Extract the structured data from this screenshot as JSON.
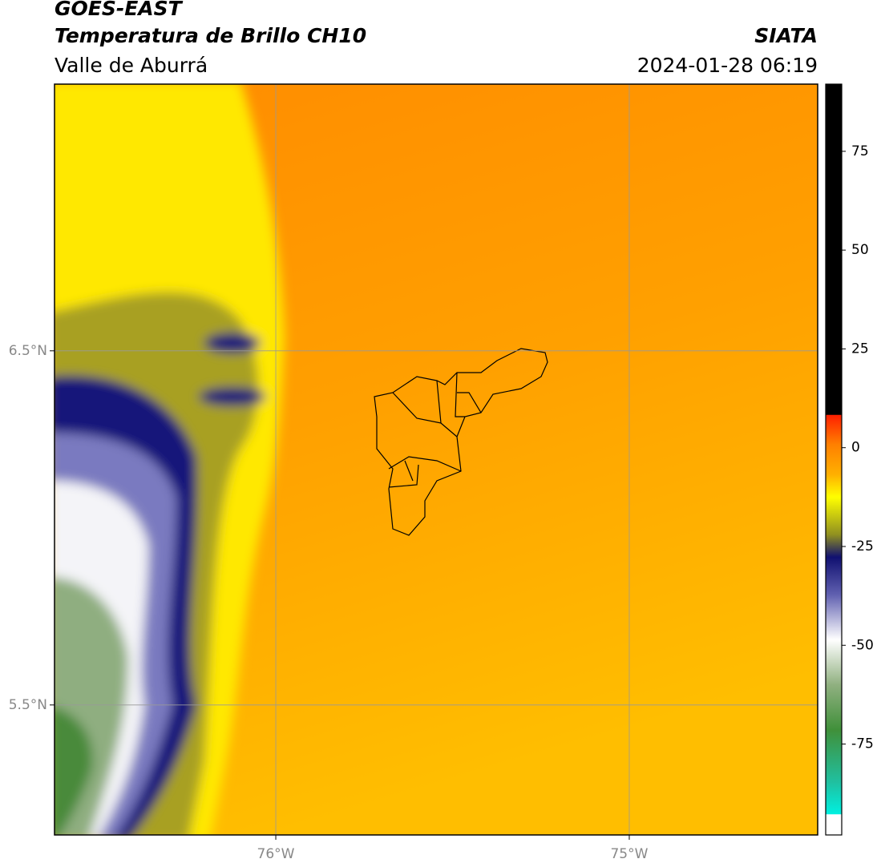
{
  "header": {
    "title": "GOES-EAST",
    "subtitle": "Temperatura de Brillo CH10",
    "region": "Valle de Aburrá",
    "source": "SIATA",
    "datetime": "2024-01-28 06:19"
  },
  "map": {
    "latlim": [
      5.133,
      7.253
    ],
    "lonlim": [
      -76.626,
      -74.467
    ],
    "latticks": [
      {
        "value": 6.5,
        "label": "6.5°N"
      },
      {
        "value": 5.5,
        "label": "5.5°N"
      }
    ],
    "lonticks": [
      {
        "value": -76,
        "label": "76°W"
      },
      {
        "value": -75,
        "label": "75°W"
      }
    ]
  },
  "colorbar": {
    "lim": [
      -98,
      92
    ],
    "ticks": [
      75,
      50,
      25,
      0,
      -25,
      -50,
      -75
    ]
  }
}
